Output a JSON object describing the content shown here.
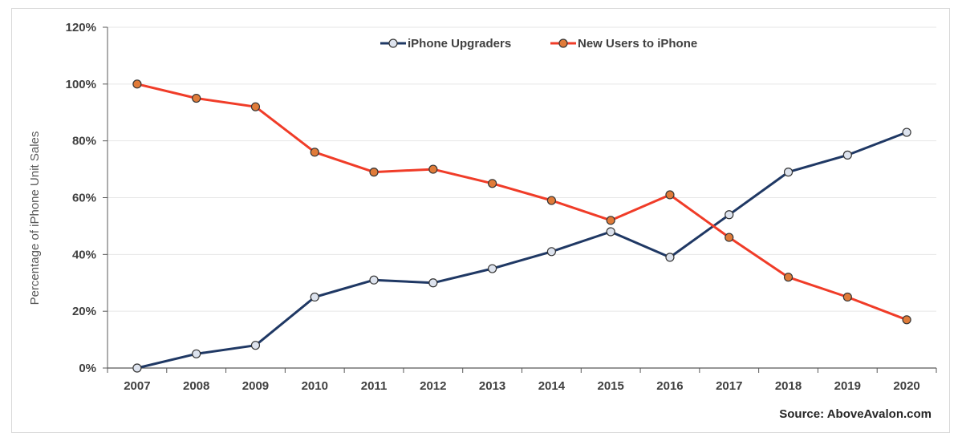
{
  "chart_data": {
    "type": "line",
    "title": "",
    "xlabel": "",
    "ylabel": "Percentage of iPhone Unit Sales",
    "categories": [
      "2007",
      "2008",
      "2009",
      "2010",
      "2011",
      "2012",
      "2013",
      "2014",
      "2015",
      "2016",
      "2017",
      "2018",
      "2019",
      "2020"
    ],
    "ylim": [
      0,
      120
    ],
    "yticks": [
      0,
      20,
      40,
      60,
      80,
      100,
      120
    ],
    "ytick_labels": [
      "0%",
      "20%",
      "40%",
      "60%",
      "80%",
      "100%",
      "120%"
    ],
    "grid": true,
    "legend_position": "top-center",
    "series": [
      {
        "name": "iPhone Upgraders",
        "color": "#1f3864",
        "marker_fill": "#dde3ee",
        "values": [
          0,
          5,
          8,
          25,
          31,
          30,
          35,
          41,
          48,
          39,
          54,
          69,
          75,
          83
        ]
      },
      {
        "name": "New Users to iPhone",
        "color": "#f03c28",
        "marker_fill": "#e07b39",
        "values": [
          100,
          95,
          92,
          76,
          69,
          70,
          65,
          59,
          52,
          61,
          46,
          32,
          25,
          17
        ]
      }
    ],
    "annotation": "Source: AboveAvalon.com"
  }
}
